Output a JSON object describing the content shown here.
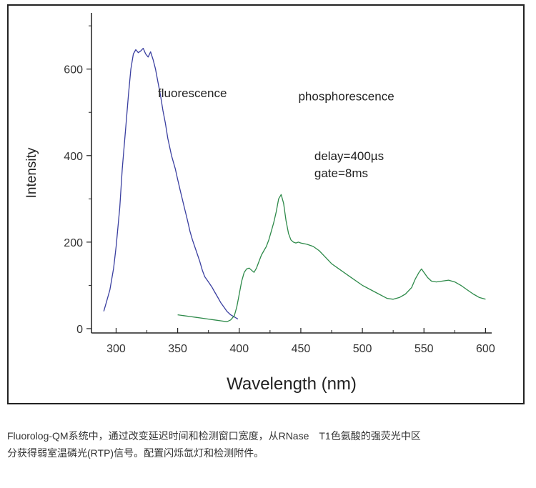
{
  "chart_data": {
    "type": "line",
    "xlabel": "Wavelength (nm)",
    "ylabel": "Intensity",
    "xlim": [
      280,
      605
    ],
    "ylim": [
      -10,
      730
    ],
    "xticks": [
      300,
      350,
      400,
      450,
      500,
      550,
      600
    ],
    "yticks": [
      0,
      200,
      400,
      600
    ],
    "grid": false,
    "annotations": [
      {
        "text": "fluorescence",
        "x": 334,
        "y": 535
      },
      {
        "text": "phosphorescence",
        "x": 448,
        "y": 528
      },
      {
        "text": "delay=400µs",
        "x": 461,
        "y": 390
      },
      {
        "text": "gate=8ms",
        "x": 461,
        "y": 350
      }
    ],
    "series": [
      {
        "color": "#3a3fa0",
        "x": [
          290,
          292,
          295,
          298,
          300,
          303,
          305,
          308,
          310,
          312,
          314,
          316,
          318,
          320,
          322,
          324,
          326,
          328,
          330,
          332,
          334,
          336,
          338,
          340,
          342,
          345,
          348,
          350,
          352,
          355,
          358,
          360,
          362,
          365,
          368,
          370,
          372,
          375,
          378,
          380,
          382,
          385,
          388,
          390,
          393,
          396,
          399
        ],
        "y": [
          40,
          60,
          90,
          140,
          190,
          280,
          370,
          470,
          540,
          600,
          635,
          645,
          638,
          642,
          648,
          635,
          628,
          640,
          622,
          600,
          570,
          540,
          505,
          475,
          440,
          400,
          370,
          345,
          320,
          285,
          250,
          225,
          205,
          180,
          155,
          135,
          120,
          108,
          95,
          85,
          75,
          60,
          48,
          40,
          32,
          27,
          22
        ]
      },
      {
        "color": "#2e8a4a",
        "x": [
          350,
          355,
          360,
          365,
          370,
          375,
          380,
          385,
          390,
          393,
          396,
          398,
          400,
          402,
          404,
          406,
          408,
          410,
          412,
          414,
          416,
          418,
          420,
          422,
          424,
          426,
          428,
          430,
          432,
          434,
          436,
          438,
          440,
          442,
          444,
          446,
          448,
          450,
          455,
          460,
          465,
          470,
          475,
          480,
          490,
          500,
          510,
          520,
          525,
          530,
          535,
          540,
          543,
          546,
          548,
          550,
          553,
          556,
          560,
          565,
          570,
          575,
          580,
          585,
          590,
          595,
          600
        ],
        "y": [
          32,
          30,
          28,
          26,
          24,
          22,
          20,
          18,
          16,
          20,
          30,
          50,
          80,
          110,
          130,
          138,
          140,
          135,
          130,
          140,
          155,
          170,
          180,
          190,
          205,
          225,
          245,
          270,
          300,
          310,
          290,
          250,
          220,
          205,
          200,
          198,
          200,
          198,
          195,
          190,
          180,
          165,
          150,
          140,
          120,
          100,
          85,
          70,
          68,
          72,
          80,
          95,
          115,
          130,
          138,
          130,
          118,
          110,
          108,
          110,
          112,
          108,
          100,
          90,
          80,
          72,
          68
        ]
      }
    ]
  },
  "caption": {
    "line1": "Fluorolog-QM系统中，通过改变延迟时间和检测窗口宽度，从RNase　T1色氨酸的强荧光中区",
    "line2": "分获得弱室温磷光(RTP)信号。配置闪烁氙灯和检测附件。"
  }
}
